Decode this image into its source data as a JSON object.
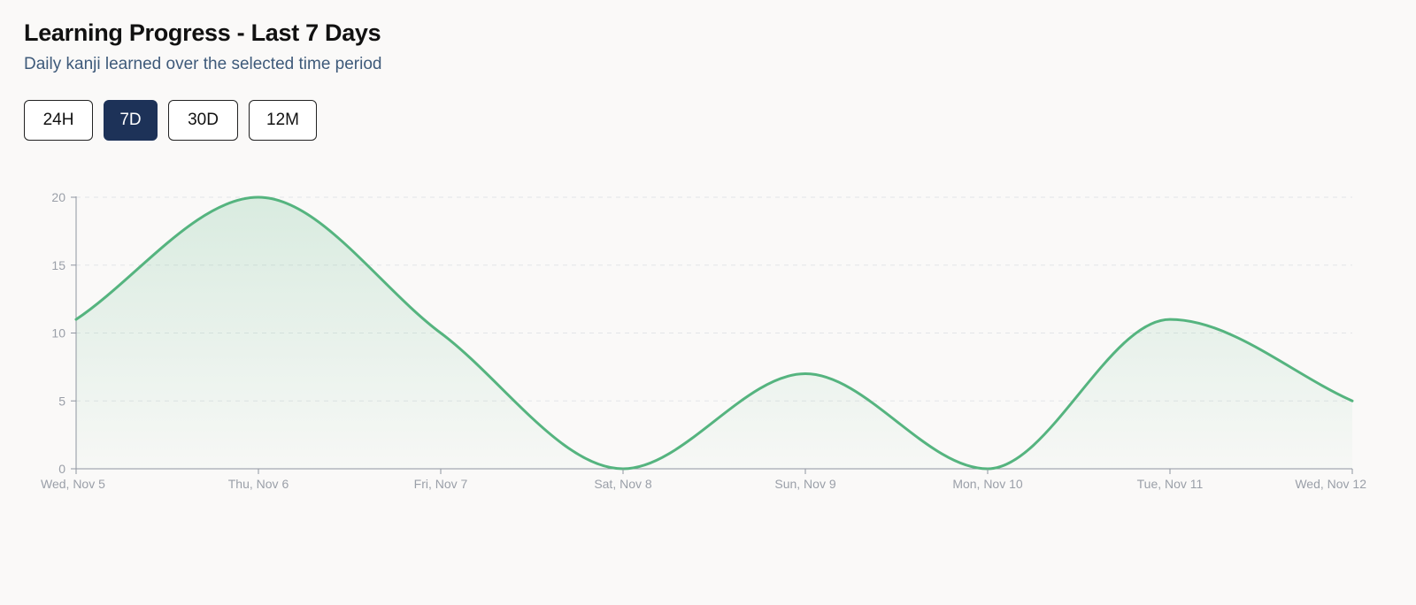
{
  "header": {
    "title": "Learning Progress - Last 7 Days",
    "subtitle": "Daily kanji learned over the selected time period"
  },
  "range_selector": {
    "options": [
      "24H",
      "7D",
      "30D",
      "12M"
    ],
    "selected": "7D"
  },
  "colors": {
    "line": "#55b47f",
    "active_button": "#1d3258",
    "subtitle": "#3e5a7a"
  },
  "chart_data": {
    "type": "area",
    "categories": [
      "Wed, Nov 5",
      "Thu, Nov 6",
      "Fri, Nov 7",
      "Sat, Nov 8",
      "Sun, Nov 9",
      "Mon, Nov 10",
      "Tue, Nov 11",
      "Wed, Nov 12"
    ],
    "values": [
      11,
      20,
      10,
      0,
      7,
      0,
      11,
      5
    ],
    "title": "Learning Progress - Last 7 Days",
    "subtitle": "Daily kanji learned over the selected time period",
    "xlabel": "",
    "ylabel": "",
    "ylim": [
      0,
      20
    ],
    "yticks": [
      0,
      5,
      10,
      15,
      20
    ],
    "grid": "horizontal-dashed",
    "legend": "none",
    "curve": "smooth"
  }
}
